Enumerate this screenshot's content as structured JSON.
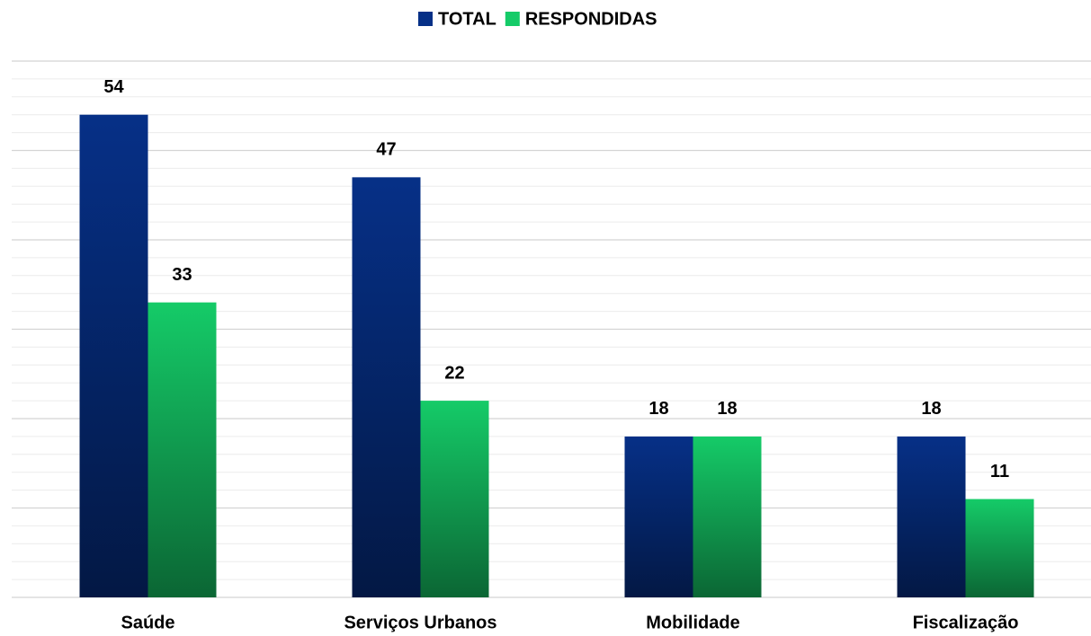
{
  "chart_data": {
    "type": "bar",
    "categories": [
      "Saúde",
      "Serviços Urbanos",
      "Mobilidade",
      "Fiscalização"
    ],
    "series": [
      {
        "name": "TOTAL",
        "color": "#063087",
        "values": [
          54,
          47,
          18,
          18
        ]
      },
      {
        "name": "RESPONDIDAS",
        "color": "#15cb68",
        "values": [
          33,
          22,
          18,
          11
        ]
      }
    ],
    "ylim": [
      0,
      60
    ],
    "yticks": [
      0,
      10,
      20,
      30,
      40,
      50,
      60
    ],
    "yminorticks": [
      2,
      4,
      6,
      8,
      12,
      14,
      16,
      18,
      22,
      24,
      26,
      28,
      32,
      34,
      36,
      38,
      42,
      44,
      46,
      48,
      52,
      54,
      56,
      58
    ],
    "grid": true,
    "legend": "top"
  }
}
